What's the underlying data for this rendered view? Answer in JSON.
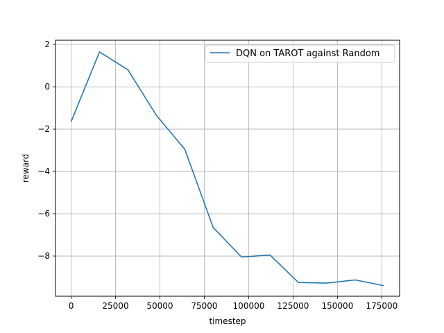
{
  "chart_data": {
    "type": "line",
    "title": "",
    "xlabel": "timestep",
    "ylabel": "reward",
    "xlim": [
      -8800,
      185000
    ],
    "ylim": [
      -9.9,
      2.2
    ],
    "grid": true,
    "legend_position": "top-right",
    "x_ticks": [
      0,
      25000,
      50000,
      75000,
      100000,
      125000,
      150000,
      175000
    ],
    "x_tick_labels": [
      "0",
      "25000",
      "50000",
      "75000",
      "100000",
      "125000",
      "150000",
      "175000"
    ],
    "y_ticks": [
      2,
      0,
      -2,
      -4,
      -6,
      -8
    ],
    "y_tick_labels": [
      "2",
      "0",
      "−2",
      "−4",
      "−6",
      "−8"
    ],
    "series": [
      {
        "name": "DQN on TAROT against Random",
        "color": "#1f77b4",
        "x": [
          0,
          16000,
          32000,
          48000,
          64000,
          80000,
          96000,
          112000,
          128000,
          144000,
          160000,
          176000
        ],
        "y": [
          -1.65,
          1.65,
          0.8,
          -1.35,
          -2.95,
          -6.65,
          -8.05,
          -7.95,
          -9.25,
          -9.28,
          -9.13,
          -9.4
        ]
      }
    ]
  }
}
